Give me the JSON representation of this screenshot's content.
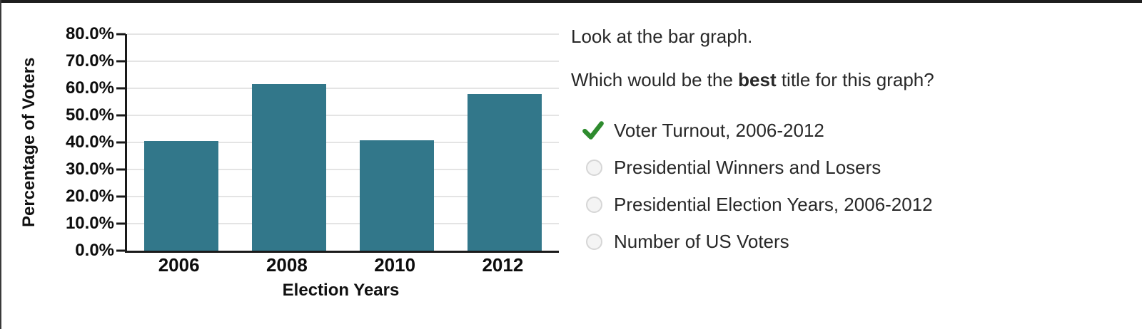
{
  "chart_data": {
    "type": "bar",
    "categories": [
      "2006",
      "2008",
      "2010",
      "2012"
    ],
    "values": [
      40.4,
      61.6,
      40.9,
      58.0
    ],
    "title": "",
    "xlabel": "Election Years",
    "ylabel": "Percentage of Voters",
    "ylim": [
      0,
      80
    ],
    "ytick_step": 10,
    "ytick_suffix": "%",
    "grid": true,
    "legend": "none",
    "bar_color": "#32778A",
    "gridline_color": "#e4e4e4",
    "axis_color": "#1a1a1a"
  },
  "question": {
    "intro": "Look at the bar graph.",
    "prompt_prefix": "Which would be the ",
    "prompt_bold": "best",
    "prompt_suffix": " title for this graph?",
    "check_color": "#2e8b2e",
    "options": [
      {
        "label": "Voter Turnout, 2006-2012",
        "selected": true
      },
      {
        "label": "Presidential Winners and Losers",
        "selected": false
      },
      {
        "label": "Presidential Election Years, 2006-2012",
        "selected": false
      },
      {
        "label": "Number of US Voters",
        "selected": false
      }
    ]
  }
}
